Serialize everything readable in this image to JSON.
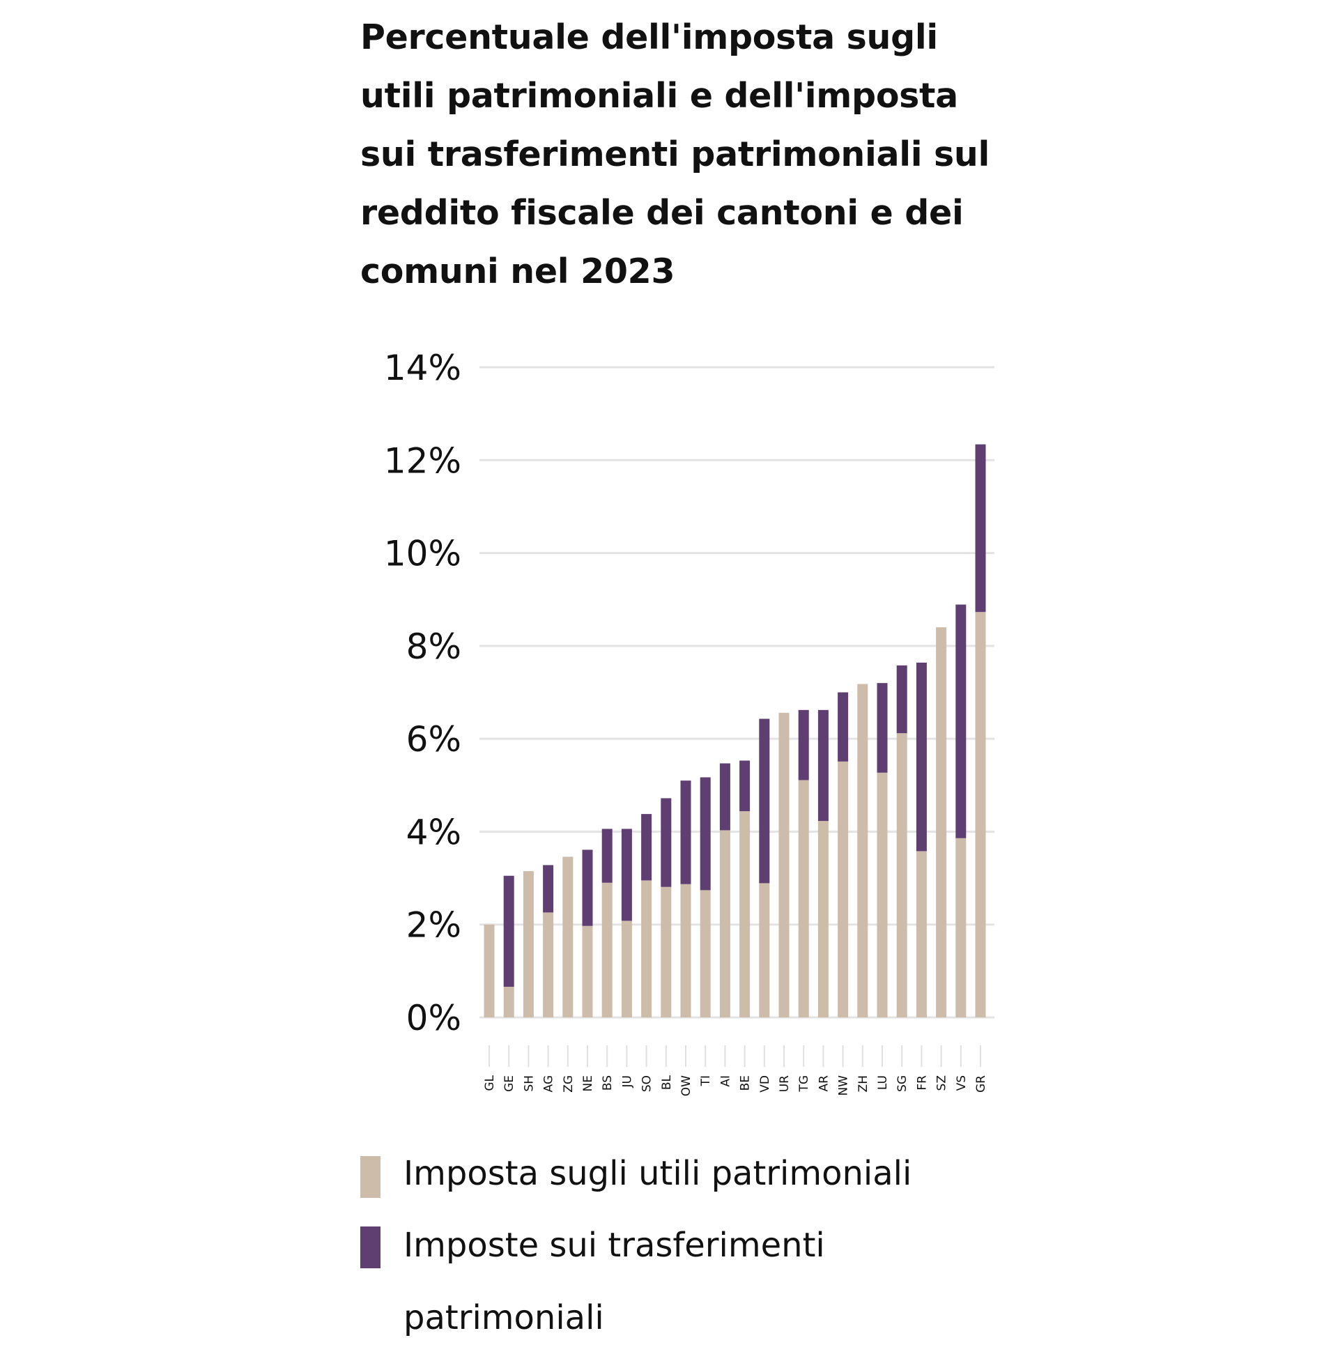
{
  "chart_data": {
    "type": "bar",
    "stacked": true,
    "title": "Percentuale dell'imposta sugli utili patrimoniali e dell'imposta sui trasferimenti patrimoniali sul reddito fiscale dei cantoni e dei comuni nel 2023",
    "xlabel": "",
    "ylabel": "",
    "ylim": [
      0,
      14
    ],
    "yticks": [
      "0%",
      "2%",
      "4%",
      "6%",
      "8%",
      "10%",
      "12%",
      "14%"
    ],
    "ytick_values": [
      0,
      2,
      4,
      6,
      8,
      10,
      12,
      14
    ],
    "grid": true,
    "legend_position": "bottom",
    "categories": [
      "GL",
      "GE",
      "SH",
      "AG",
      "ZG",
      "NE",
      "BS",
      "JU",
      "SO",
      "BL",
      "OW",
      "TI",
      "AI",
      "BE",
      "VD",
      "UR",
      "TG",
      "AR",
      "NW",
      "ZH",
      "LU",
      "SG",
      "FR",
      "SZ",
      "VS",
      "GR"
    ],
    "series": [
      {
        "name": "Imposta sugli utili patrimoniali",
        "color": "#cdbcaa",
        "values": [
          2.0,
          0.66,
          3.15,
          2.26,
          3.46,
          1.97,
          2.9,
          2.08,
          2.95,
          2.81,
          2.87,
          2.74,
          4.03,
          4.44,
          2.89,
          6.56,
          5.11,
          4.23,
          5.51,
          7.18,
          5.27,
          6.12,
          3.58,
          8.4,
          3.86,
          8.73
        ]
      },
      {
        "name": "Imposte sui trasferimenti patrimoniali",
        "color": "#5f3f72",
        "values": [
          0,
          2.39,
          0,
          1.02,
          0,
          1.64,
          1.16,
          1.98,
          1.43,
          1.91,
          2.23,
          2.43,
          1.44,
          1.09,
          3.54,
          0,
          1.51,
          2.39,
          1.49,
          0,
          1.93,
          1.46,
          4.06,
          0,
          5.03,
          3.61
        ]
      }
    ]
  }
}
